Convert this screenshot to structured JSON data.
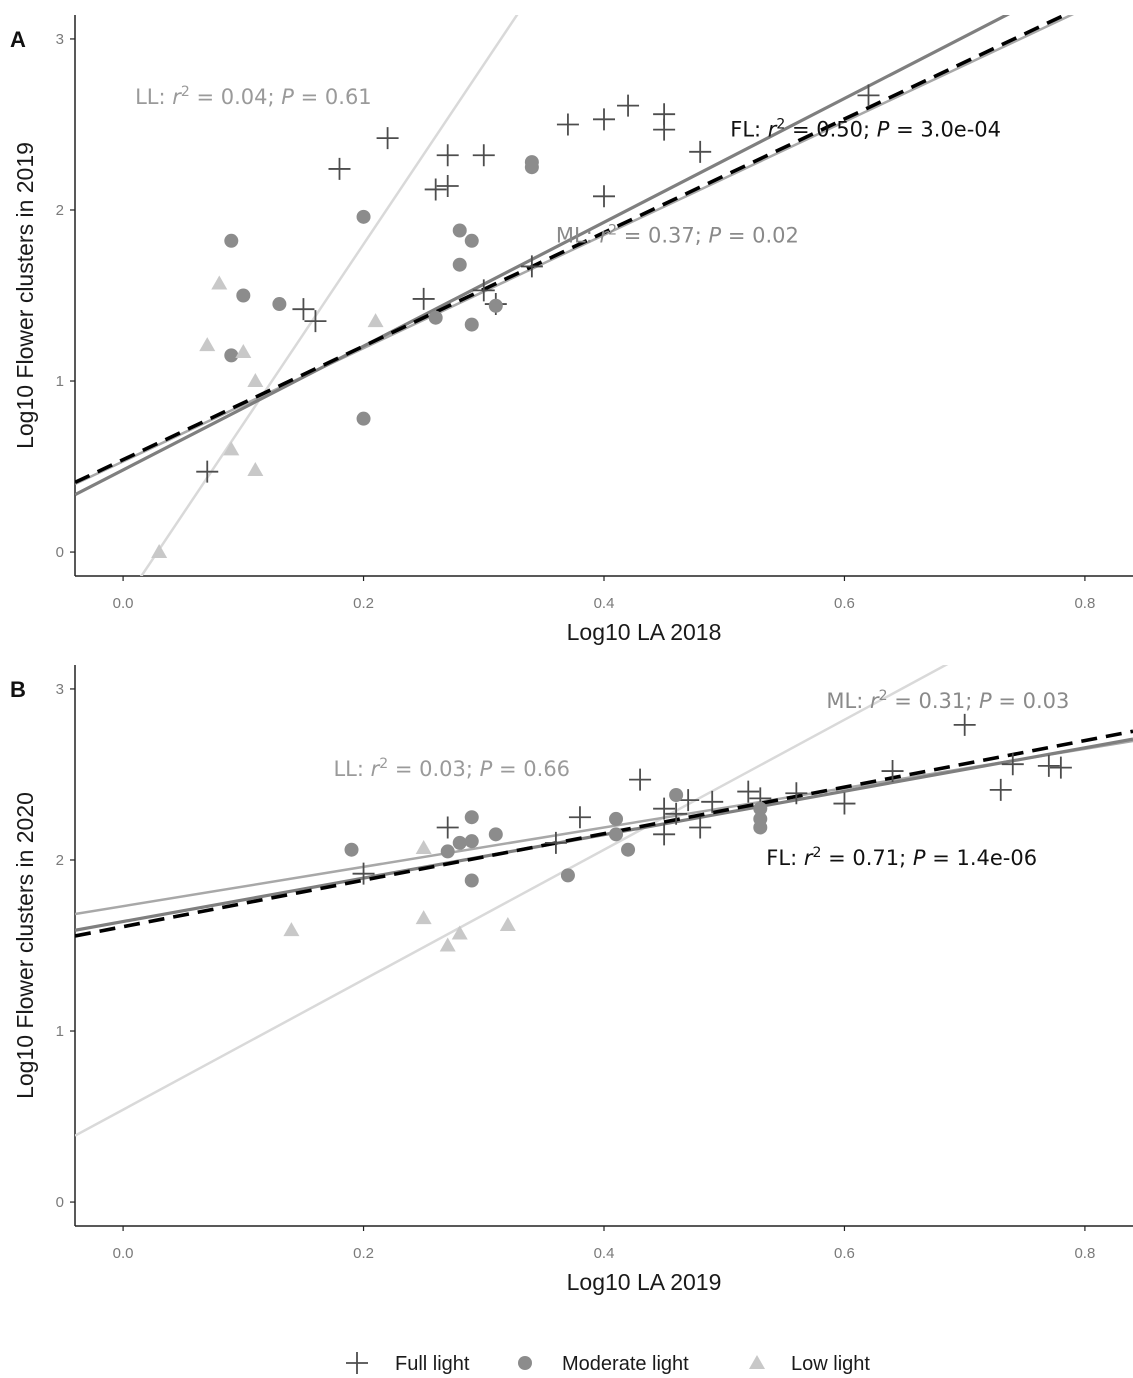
{
  "colors": {
    "full_light": "#4d4d4d",
    "moderate_light": "#8c8c8c",
    "low_light": "#c8c8c8",
    "fl_line": "#000000",
    "ml_line": "#7f7f7f",
    "ll_line": "#d9d9d9",
    "axis": "#222222"
  },
  "legend": [
    {
      "label": "Full light",
      "marker": "plus"
    },
    {
      "label": "Moderate light",
      "marker": "circle"
    },
    {
      "label": "Low light",
      "marker": "triangle"
    }
  ],
  "chart_data": [
    {
      "type": "scatter",
      "panel_label": "A",
      "xlabel": "Log10 LA 2018",
      "ylabel": "Log10 Flower clusters in 2019",
      "xlim": [
        -0.04,
        0.84
      ],
      "ylim": [
        -0.14,
        3.14
      ],
      "xticks": [
        "0.0",
        "0.2",
        "0.4",
        "0.6",
        "0.8"
      ],
      "xtick_values": [
        0.0,
        0.2,
        0.4,
        0.6,
        0.8
      ],
      "yticks": [
        "0",
        "1",
        "2",
        "3"
      ],
      "ytick_values": [
        0,
        1,
        2,
        3
      ],
      "grid": false,
      "series": [
        {
          "name": "Full light",
          "marker": "plus",
          "x": [
            0.07,
            0.15,
            0.16,
            0.18,
            0.22,
            0.25,
            0.26,
            0.27,
            0.27,
            0.3,
            0.3,
            0.31,
            0.34,
            0.37,
            0.4,
            0.4,
            0.42,
            0.45,
            0.45,
            0.48,
            0.62
          ],
          "y": [
            0.47,
            1.42,
            1.35,
            2.24,
            2.42,
            1.48,
            2.12,
            2.32,
            2.14,
            2.32,
            1.53,
            1.45,
            1.67,
            2.5,
            2.53,
            2.08,
            2.61,
            2.47,
            2.56,
            2.34,
            2.67
          ]
        },
        {
          "name": "Moderate light",
          "marker": "circle",
          "x": [
            0.09,
            0.09,
            0.1,
            0.13,
            0.2,
            0.2,
            0.26,
            0.28,
            0.28,
            0.29,
            0.29,
            0.31,
            0.34,
            0.34
          ],
          "y": [
            1.82,
            1.15,
            1.5,
            1.45,
            0.78,
            1.96,
            1.37,
            1.88,
            1.68,
            1.82,
            1.33,
            1.44,
            2.25,
            2.28
          ]
        },
        {
          "name": "Low light",
          "marker": "triangle",
          "x": [
            0.03,
            0.07,
            0.08,
            0.09,
            0.1,
            0.11,
            0.11,
            0.21
          ],
          "y": [
            0.0,
            1.21,
            1.57,
            0.6,
            1.17,
            0.48,
            1.0,
            1.35
          ]
        }
      ],
      "fits": [
        {
          "name": "LL",
          "intercept": -0.3,
          "slope": 10.5,
          "style": "solid-light"
        },
        {
          "name": "ML",
          "intercept": 0.53,
          "slope": 3.31,
          "style": "solid-mid"
        },
        {
          "name": "FL",
          "intercept": 0.48,
          "slope": 3.62,
          "style": "solid-dark"
        },
        {
          "name": "FL",
          "intercept": 0.54,
          "slope": 3.32,
          "style": "dashed-black"
        }
      ],
      "annotations": [
        {
          "series": "LL",
          "r2": "0.04",
          "p": "0.61",
          "color": "#9a9a9a",
          "x": 0.01,
          "y": 2.62
        },
        {
          "series": "FL",
          "r2": "0.50",
          "p": "3.0e-04",
          "color": "#111111",
          "x": 0.505,
          "y": 2.43
        },
        {
          "series": "ML",
          "r2": "0.37",
          "p": "0.02",
          "color": "#8a8a8a",
          "x": 0.36,
          "y": 1.81
        }
      ]
    },
    {
      "type": "scatter",
      "panel_label": "B",
      "xlabel": "Log10 LA 2019",
      "ylabel": "Log10 Flower clusters in 2020",
      "xlim": [
        -0.04,
        0.84
      ],
      "ylim": [
        -0.14,
        3.14
      ],
      "xticks": [
        "0.0",
        "0.2",
        "0.4",
        "0.6",
        "0.8"
      ],
      "xtick_values": [
        0.0,
        0.2,
        0.4,
        0.6,
        0.8
      ],
      "yticks": [
        "0",
        "1",
        "2",
        "3"
      ],
      "ytick_values": [
        0,
        1,
        2,
        3
      ],
      "grid": false,
      "series": [
        {
          "name": "Full light",
          "marker": "plus",
          "x": [
            0.2,
            0.27,
            0.36,
            0.38,
            0.43,
            0.45,
            0.45,
            0.46,
            0.47,
            0.48,
            0.49,
            0.52,
            0.53,
            0.56,
            0.6,
            0.64,
            0.7,
            0.73,
            0.74,
            0.77,
            0.78
          ],
          "y": [
            1.92,
            2.19,
            2.1,
            2.25,
            2.47,
            2.3,
            2.15,
            2.27,
            2.35,
            2.19,
            2.34,
            2.4,
            2.36,
            2.39,
            2.33,
            2.52,
            2.79,
            2.41,
            2.56,
            2.55,
            2.54
          ]
        },
        {
          "name": "Moderate light",
          "marker": "circle",
          "x": [
            0.19,
            0.27,
            0.28,
            0.29,
            0.29,
            0.29,
            0.31,
            0.37,
            0.41,
            0.41,
            0.42,
            0.46,
            0.53,
            0.53,
            0.53
          ],
          "y": [
            2.06,
            2.05,
            2.1,
            2.25,
            2.11,
            1.88,
            2.15,
            1.91,
            2.15,
            2.24,
            2.06,
            2.38,
            2.3,
            2.19,
            2.24
          ]
        },
        {
          "name": "Low light",
          "marker": "triangle",
          "x": [
            0.14,
            0.25,
            0.25,
            0.27,
            0.28,
            0.32
          ],
          "y": [
            1.59,
            2.07,
            1.66,
            1.5,
            1.57,
            1.62
          ]
        }
      ],
      "fits": [
        {
          "name": "LL",
          "intercept": 0.54,
          "slope": 3.8,
          "style": "solid-light"
        },
        {
          "name": "ML",
          "intercept": 1.73,
          "slope": 1.15,
          "style": "solid-mid"
        },
        {
          "name": "FL",
          "intercept": 1.64,
          "slope": 1.27,
          "style": "solid-dark"
        },
        {
          "name": "FL",
          "intercept": 1.61,
          "slope": 1.36,
          "style": "dashed-black"
        }
      ],
      "annotations": [
        {
          "series": "ML",
          "r2": "0.31",
          "p": "0.03",
          "color": "#8a8a8a",
          "x": 0.585,
          "y": 2.89
        },
        {
          "series": "LL",
          "r2": "0.03",
          "p": "0.66",
          "color": "#9a9a9a",
          "x": 0.175,
          "y": 2.49
        },
        {
          "series": "FL",
          "r2": "0.71",
          "p": "1.4e-06",
          "color": "#111111",
          "x": 0.535,
          "y": 1.97
        }
      ]
    }
  ]
}
